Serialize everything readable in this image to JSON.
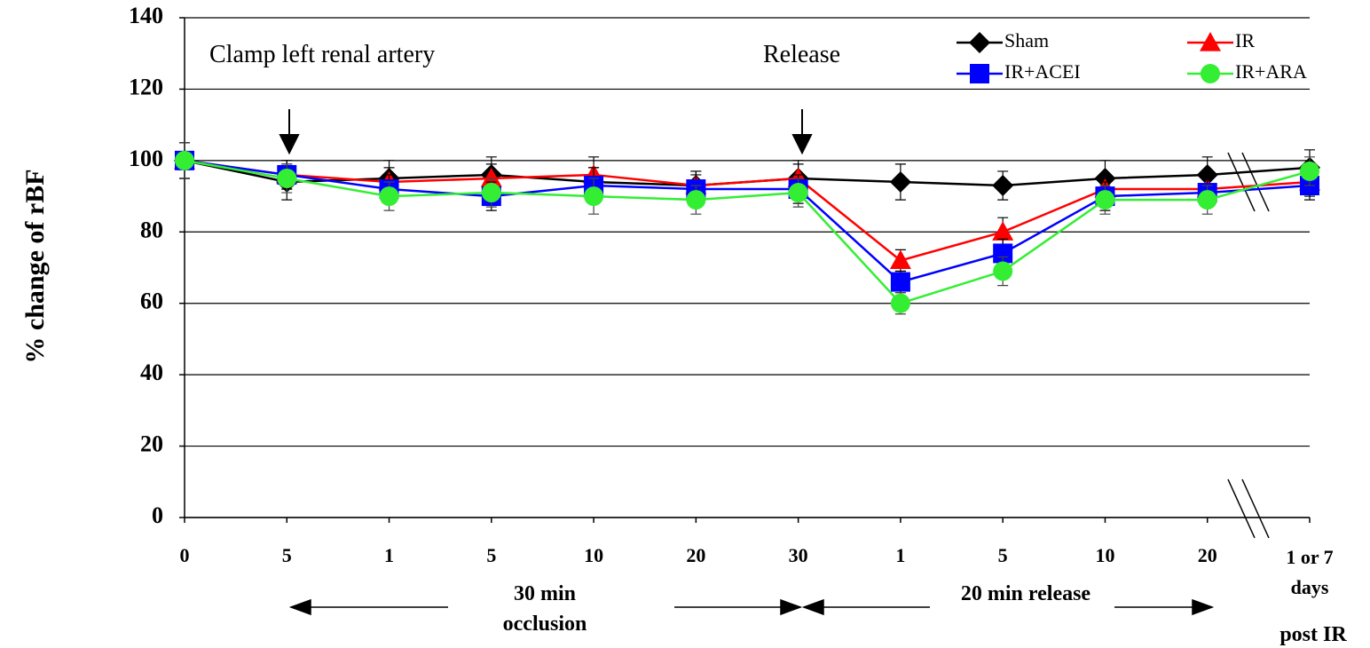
{
  "chart_data": {
    "type": "line",
    "y_label": "% change of rBF",
    "categories": [
      "0",
      "5",
      "1",
      "5",
      "10",
      "20",
      "30",
      "1",
      "5",
      "10",
      "20",
      "1 or 7 days"
    ],
    "series": [
      {
        "name": "Sham",
        "color": "#000000",
        "marker": "diamond",
        "values": [
          100,
          94,
          95,
          96,
          94,
          93,
          95,
          94,
          93,
          95,
          96,
          98
        ],
        "errors": [
          5,
          5,
          5,
          5,
          4,
          4,
          5,
          5,
          4,
          5,
          5,
          5
        ]
      },
      {
        "name": "IR",
        "color": "#ff0000",
        "marker": "triangle",
        "values": [
          100,
          96,
          94,
          95,
          96,
          93,
          95,
          72,
          80,
          92,
          92,
          94
        ],
        "errors": [
          5,
          4,
          4,
          4,
          5,
          4,
          4,
          3,
          4,
          4,
          4,
          4
        ]
      },
      {
        "name": "IR+ACEI",
        "color": "#0000ff",
        "marker": "square",
        "values": [
          100,
          96,
          92,
          90,
          93,
          92,
          92,
          66,
          74,
          90,
          91,
          93
        ],
        "errors": [
          5,
          4,
          4,
          4,
          5,
          4,
          4,
          3,
          4,
          4,
          4,
          4
        ]
      },
      {
        "name": "IR+ARA",
        "color": "#33ee33",
        "marker": "circle",
        "values": [
          100,
          95,
          90,
          91,
          90,
          89,
          91,
          60,
          69,
          89,
          89,
          97
        ],
        "errors": [
          5,
          4,
          4,
          4,
          5,
          4,
          4,
          3,
          4,
          4,
          4,
          4
        ]
      }
    ],
    "ylim": [
      0,
      140
    ],
    "yticks": [
      0,
      20,
      40,
      60,
      80,
      100,
      120,
      140
    ],
    "grid": true,
    "annotations": [
      "Clamp left renal artery",
      "Release",
      "30 min occlusion",
      "20 min release",
      "post IR"
    ]
  }
}
